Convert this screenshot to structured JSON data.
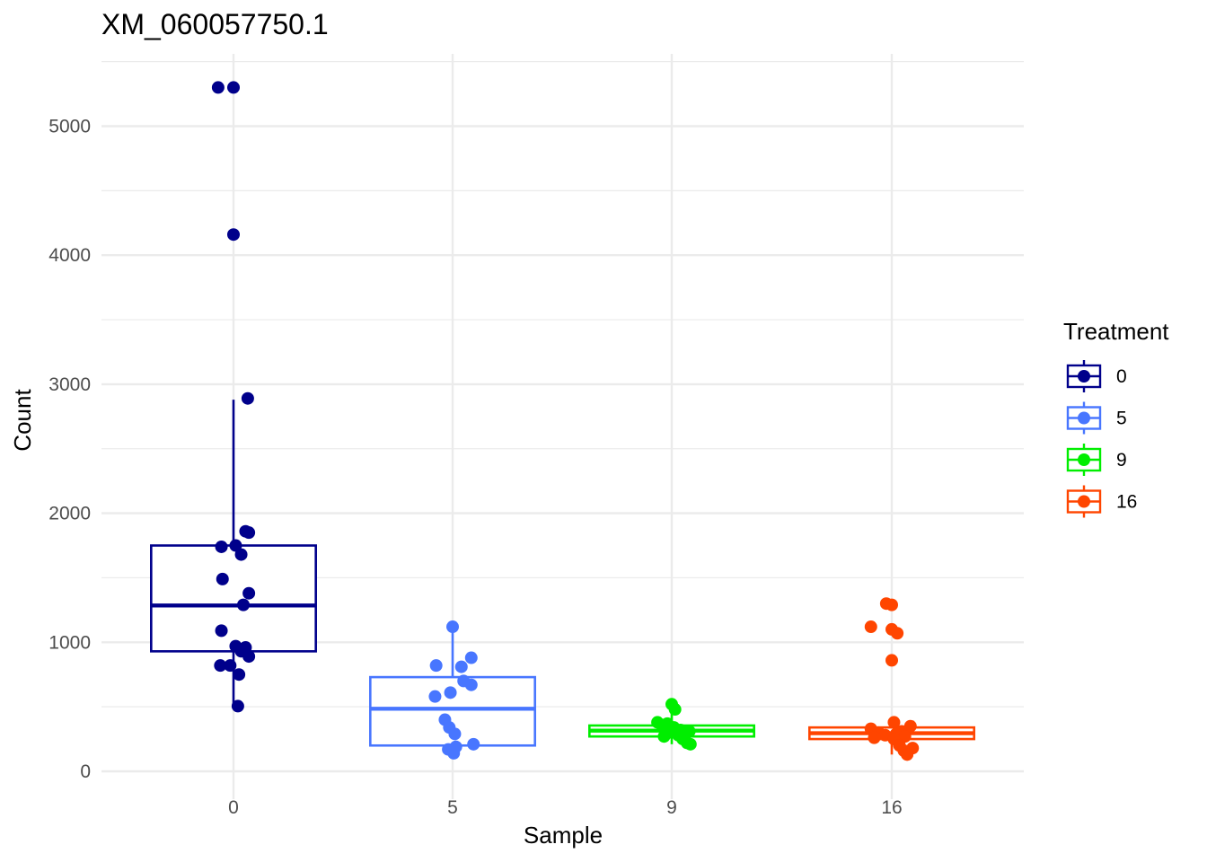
{
  "chart_data": {
    "type": "box",
    "title": "XM_060057750.1",
    "xlabel": "Sample",
    "ylabel": "Count",
    "categories": [
      "0",
      "5",
      "9",
      "16"
    ],
    "ylim": [
      -200,
      5550
    ],
    "y_ticks": [
      0,
      1000,
      2000,
      3000,
      4000,
      5000
    ],
    "grid": true,
    "legend": {
      "title": "Treatment",
      "placement": "right",
      "entries": [
        "0",
        "5",
        "9",
        "16"
      ]
    },
    "colors": {
      "0": "#00008B",
      "5": "#4876FF",
      "9": "#00EE00",
      "16": "#FF4500"
    },
    "boxes": [
      {
        "category": "0",
        "whisker_low": 500,
        "q1": 930,
        "median": 1285,
        "q3": 1750,
        "whisker_high": 2880
      },
      {
        "category": "5",
        "whisker_low": 140,
        "q1": 200,
        "median": 485,
        "q3": 730,
        "whisker_high": 1120
      },
      {
        "category": "9",
        "whisker_low": 210,
        "q1": 270,
        "median": 315,
        "q3": 355,
        "whisker_high": 520
      },
      {
        "category": "16",
        "whisker_low": 130,
        "q1": 250,
        "median": 295,
        "q3": 340,
        "whisker_high": 380
      }
    ],
    "points": [
      {
        "category": "0",
        "y": 5300,
        "jitter": -0.14
      },
      {
        "category": "0",
        "y": 5300,
        "jitter": 0.0
      },
      {
        "category": "0",
        "y": 4160,
        "jitter": 0.0
      },
      {
        "category": "0",
        "y": 2890,
        "jitter": 0.13
      },
      {
        "category": "0",
        "y": 1860,
        "jitter": 0.11
      },
      {
        "category": "0",
        "y": 1850,
        "jitter": 0.14
      },
      {
        "category": "0",
        "y": 1750,
        "jitter": 0.02
      },
      {
        "category": "0",
        "y": 1740,
        "jitter": -0.11
      },
      {
        "category": "0",
        "y": 1680,
        "jitter": 0.07
      },
      {
        "category": "0",
        "y": 1490,
        "jitter": -0.1
      },
      {
        "category": "0",
        "y": 1380,
        "jitter": 0.14
      },
      {
        "category": "0",
        "y": 1290,
        "jitter": 0.09
      },
      {
        "category": "0",
        "y": 1090,
        "jitter": -0.11
      },
      {
        "category": "0",
        "y": 970,
        "jitter": 0.02
      },
      {
        "category": "0",
        "y": 960,
        "jitter": 0.11
      },
      {
        "category": "0",
        "y": 930,
        "jitter": 0.07
      },
      {
        "category": "0",
        "y": 890,
        "jitter": 0.14
      },
      {
        "category": "0",
        "y": 820,
        "jitter": -0.12
      },
      {
        "category": "0",
        "y": 820,
        "jitter": -0.03
      },
      {
        "category": "0",
        "y": 750,
        "jitter": 0.05
      },
      {
        "category": "0",
        "y": 505,
        "jitter": 0.04
      },
      {
        "category": "5",
        "y": 1120,
        "jitter": 0.0
      },
      {
        "category": "5",
        "y": 880,
        "jitter": 0.17
      },
      {
        "category": "5",
        "y": 820,
        "jitter": -0.15
      },
      {
        "category": "5",
        "y": 810,
        "jitter": 0.08
      },
      {
        "category": "5",
        "y": 700,
        "jitter": 0.1
      },
      {
        "category": "5",
        "y": 670,
        "jitter": 0.17
      },
      {
        "category": "5",
        "y": 610,
        "jitter": -0.02
      },
      {
        "category": "5",
        "y": 580,
        "jitter": -0.16
      },
      {
        "category": "5",
        "y": 400,
        "jitter": -0.07
      },
      {
        "category": "5",
        "y": 340,
        "jitter": -0.03
      },
      {
        "category": "5",
        "y": 290,
        "jitter": 0.02
      },
      {
        "category": "5",
        "y": 210,
        "jitter": 0.19
      },
      {
        "category": "5",
        "y": 190,
        "jitter": 0.03
      },
      {
        "category": "5",
        "y": 170,
        "jitter": -0.04
      },
      {
        "category": "5",
        "y": 140,
        "jitter": 0.01
      },
      {
        "category": "9",
        "y": 520,
        "jitter": 0.0
      },
      {
        "category": "9",
        "y": 480,
        "jitter": 0.03
      },
      {
        "category": "9",
        "y": 380,
        "jitter": -0.13
      },
      {
        "category": "9",
        "y": 370,
        "jitter": -0.04
      },
      {
        "category": "9",
        "y": 360,
        "jitter": -0.09
      },
      {
        "category": "9",
        "y": 340,
        "jitter": 0.02
      },
      {
        "category": "9",
        "y": 320,
        "jitter": 0.08
      },
      {
        "category": "9",
        "y": 310,
        "jitter": 0.16
      },
      {
        "category": "9",
        "y": 300,
        "jitter": -0.03
      },
      {
        "category": "9",
        "y": 280,
        "jitter": 0.06
      },
      {
        "category": "9",
        "y": 270,
        "jitter": -0.07
      },
      {
        "category": "9",
        "y": 250,
        "jitter": 0.1
      },
      {
        "category": "9",
        "y": 220,
        "jitter": 0.14
      },
      {
        "category": "9",
        "y": 210,
        "jitter": 0.17
      },
      {
        "category": "16",
        "y": 1300,
        "jitter": -0.05
      },
      {
        "category": "16",
        "y": 1290,
        "jitter": 0.0
      },
      {
        "category": "16",
        "y": 1120,
        "jitter": -0.19
      },
      {
        "category": "16",
        "y": 1100,
        "jitter": 0.0
      },
      {
        "category": "16",
        "y": 1070,
        "jitter": 0.05
      },
      {
        "category": "16",
        "y": 860,
        "jitter": 0.0
      },
      {
        "category": "16",
        "y": 380,
        "jitter": 0.02
      },
      {
        "category": "16",
        "y": 350,
        "jitter": 0.17
      },
      {
        "category": "16",
        "y": 330,
        "jitter": -0.19
      },
      {
        "category": "16",
        "y": 310,
        "jitter": 0.09
      },
      {
        "category": "16",
        "y": 300,
        "jitter": -0.12
      },
      {
        "category": "16",
        "y": 290,
        "jitter": 0.04
      },
      {
        "category": "16",
        "y": 280,
        "jitter": -0.06
      },
      {
        "category": "16",
        "y": 270,
        "jitter": 0.12
      },
      {
        "category": "16",
        "y": 260,
        "jitter": -0.16
      },
      {
        "category": "16",
        "y": 250,
        "jitter": 0.02
      },
      {
        "category": "16",
        "y": 200,
        "jitter": 0.07
      },
      {
        "category": "16",
        "y": 180,
        "jitter": 0.19
      },
      {
        "category": "16",
        "y": 160,
        "jitter": 0.11
      },
      {
        "category": "16",
        "y": 130,
        "jitter": 0.14
      }
    ]
  }
}
